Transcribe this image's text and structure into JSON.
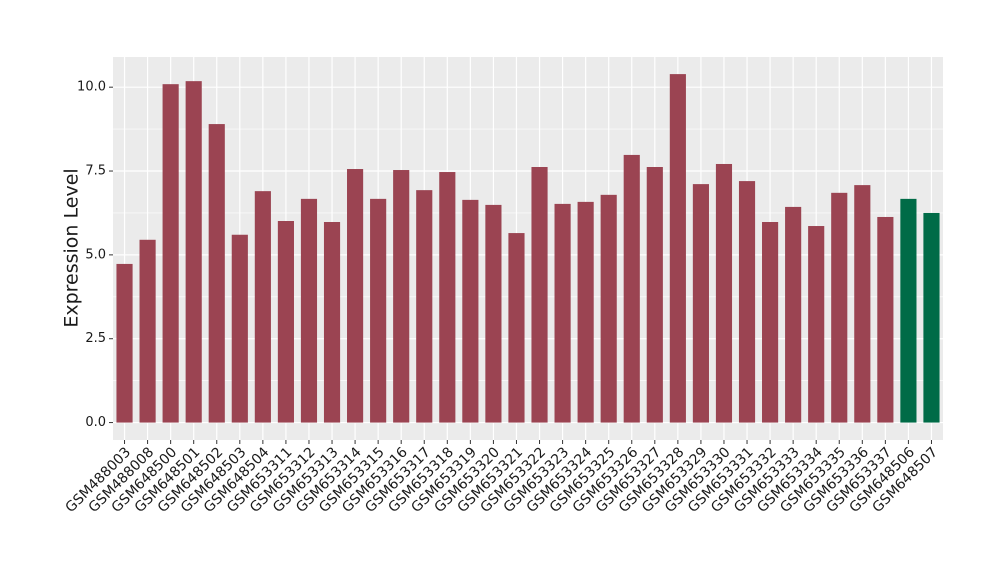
{
  "chart_data": {
    "type": "bar",
    "y_label": "Expression Level",
    "categories": [
      "GSM488003",
      "GSM488008",
      "GSM648500",
      "GSM648501",
      "GSM648502",
      "GSM648503",
      "GSM648504",
      "GSM653311",
      "GSM653312",
      "GSM653313",
      "GSM653314",
      "GSM653315",
      "GSM653316",
      "GSM653317",
      "GSM653318",
      "GSM653319",
      "GSM653320",
      "GSM653321",
      "GSM653322",
      "GSM653323",
      "GSM653324",
      "GSM653325",
      "GSM653326",
      "GSM653327",
      "GSM653328",
      "GSM653329",
      "GSM653330",
      "GSM653331",
      "GSM653332",
      "GSM653333",
      "GSM653334",
      "GSM653335",
      "GSM653336",
      "GSM653337",
      "GSM648506",
      "GSM648507"
    ],
    "values": [
      4.73,
      5.45,
      10.09,
      10.18,
      8.9,
      5.6,
      6.9,
      6.01,
      6.67,
      5.98,
      7.56,
      6.67,
      7.53,
      6.93,
      7.47,
      6.64,
      6.49,
      5.65,
      7.62,
      6.52,
      6.58,
      6.79,
      7.98,
      7.62,
      10.39,
      7.11,
      7.71,
      7.2,
      5.98,
      6.43,
      5.86,
      6.85,
      7.08,
      6.13,
      6.67,
      6.25
    ],
    "colors": [
      "#9b4452",
      "#9b4452",
      "#9b4452",
      "#9b4452",
      "#9b4452",
      "#9b4452",
      "#9b4452",
      "#9b4452",
      "#9b4452",
      "#9b4452",
      "#9b4452",
      "#9b4452",
      "#9b4452",
      "#9b4452",
      "#9b4452",
      "#9b4452",
      "#9b4452",
      "#9b4452",
      "#9b4452",
      "#9b4452",
      "#9b4452",
      "#9b4452",
      "#9b4452",
      "#9b4452",
      "#9b4452",
      "#9b4452",
      "#9b4452",
      "#9b4452",
      "#9b4452",
      "#9b4452",
      "#9b4452",
      "#9b4452",
      "#9b4452",
      "#9b4452",
      "#006b47",
      "#006b47"
    ],
    "ylim": [
      -0.52,
      10.9
    ],
    "yticks": [
      {
        "value": 0,
        "label": "0.0"
      },
      {
        "value": 2.5,
        "label": "2.5"
      },
      {
        "value": 5,
        "label": "5.0"
      },
      {
        "value": 7.5,
        "label": "7.5"
      },
      {
        "value": 10,
        "label": "10.0"
      }
    ],
    "grid": true
  }
}
